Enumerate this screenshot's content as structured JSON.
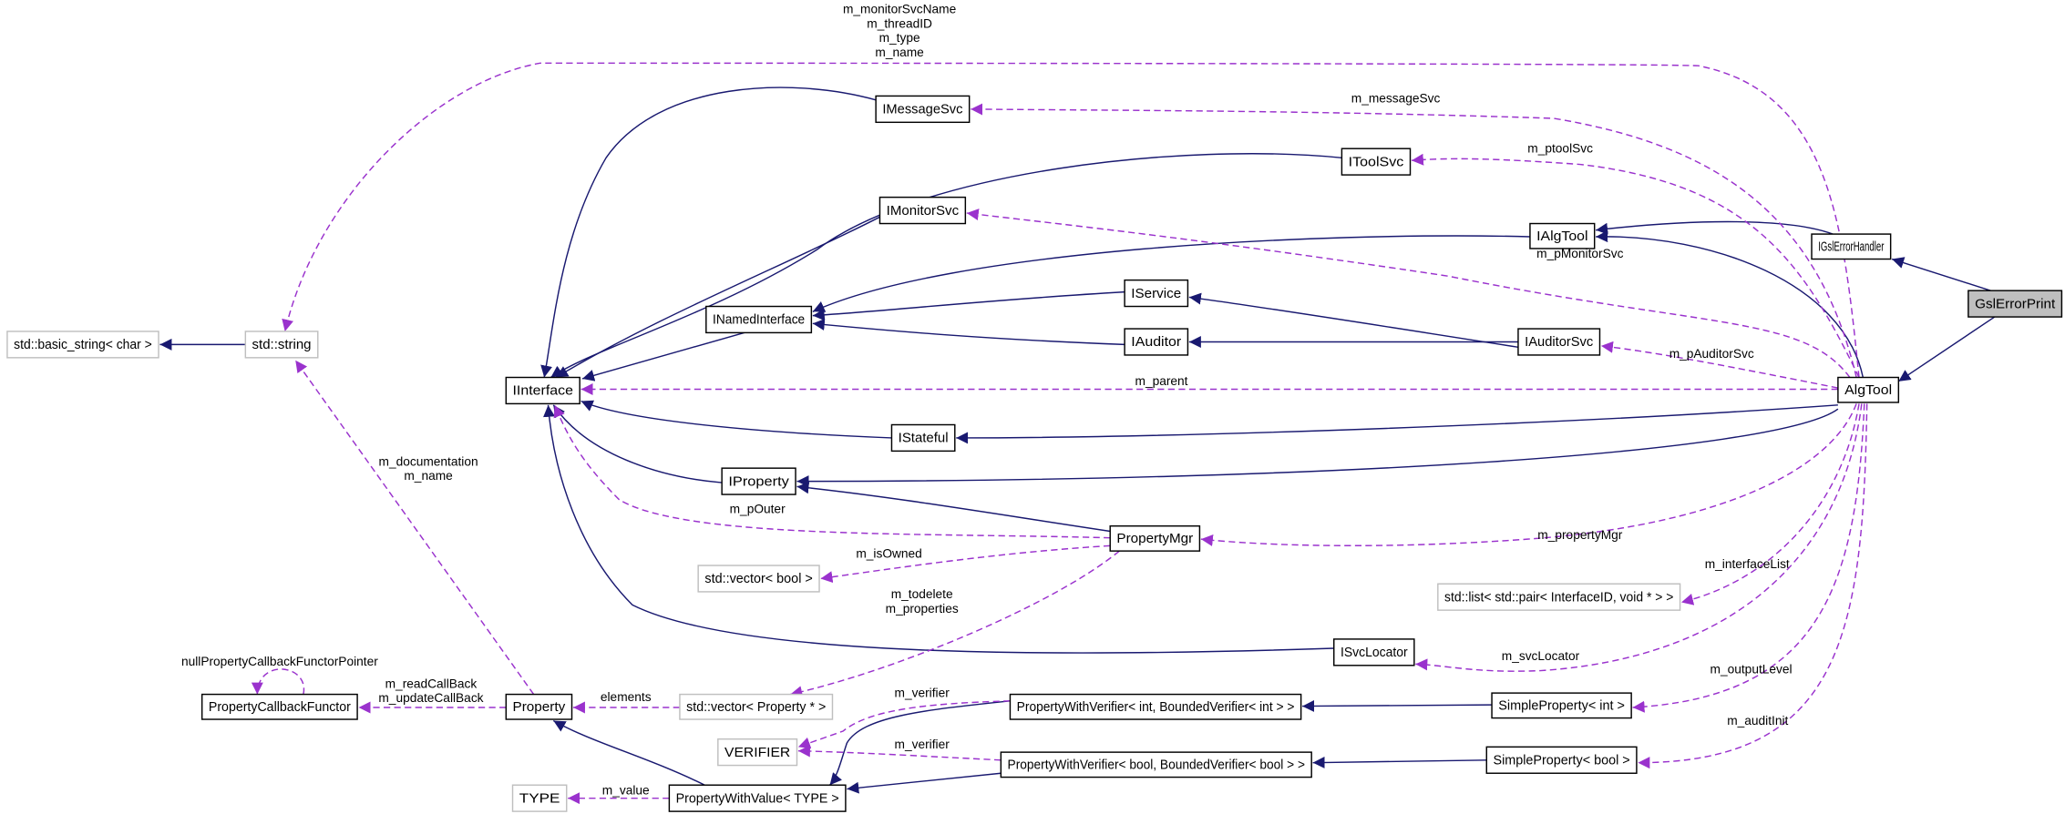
{
  "colors": {
    "inheritance": "#191970",
    "usage": "#9a32cd",
    "focus_fill": "#bfbfbf",
    "external_border": "#bfbfbf"
  },
  "nodes": [
    {
      "label": "GslErrorPrint",
      "kind": "focus"
    },
    {
      "label": "IGslErrorHandler",
      "kind": "class"
    },
    {
      "label": "AlgTool",
      "kind": "class"
    },
    {
      "label": "IAlgTool",
      "kind": "class"
    },
    {
      "label": "IToolSvc",
      "kind": "class"
    },
    {
      "label": "IMessageSvc",
      "kind": "class"
    },
    {
      "label": "IMonitorSvc",
      "kind": "class"
    },
    {
      "label": "IService",
      "kind": "class"
    },
    {
      "label": "IAuditor",
      "kind": "class"
    },
    {
      "label": "IAuditorSvc",
      "kind": "class"
    },
    {
      "label": "INamedInterface",
      "kind": "class"
    },
    {
      "label": "IInterface",
      "kind": "class"
    },
    {
      "label": "std::basic_string< char >",
      "kind": "external"
    },
    {
      "label": "std::string",
      "kind": "external"
    },
    {
      "label": "IStateful",
      "kind": "class"
    },
    {
      "label": "IProperty",
      "kind": "class"
    },
    {
      "label": "PropertyMgr",
      "kind": "class"
    },
    {
      "label": "std::vector< bool >",
      "kind": "external"
    },
    {
      "label": "std::list< std::pair< InterfaceID, void * > >",
      "kind": "external"
    },
    {
      "label": "ISvcLocator",
      "kind": "class"
    },
    {
      "label": "PropertyCallbackFunctor",
      "kind": "class"
    },
    {
      "label": "Property",
      "kind": "class"
    },
    {
      "label": "std::vector< Property * >",
      "kind": "external"
    },
    {
      "label": "PropertyWithVerifier< int, BoundedVerifier< int > >",
      "kind": "class"
    },
    {
      "label": "SimpleProperty< int >",
      "kind": "class"
    },
    {
      "label": "VERIFIER",
      "kind": "external"
    },
    {
      "label": "PropertyWithVerifier< bool, BoundedVerifier< bool > >",
      "kind": "class"
    },
    {
      "label": "SimpleProperty< bool >",
      "kind": "class"
    },
    {
      "label": "TYPE",
      "kind": "external"
    },
    {
      "label": "PropertyWithValue< TYPE >",
      "kind": "class"
    }
  ],
  "edges": [
    {
      "from": "GslErrorPrint",
      "to": "IGslErrorHandler",
      "kind": "inheritance",
      "labels": []
    },
    {
      "from": "GslErrorPrint",
      "to": "AlgTool",
      "kind": "inheritance",
      "labels": []
    },
    {
      "from": "IGslErrorHandler",
      "to": "IAlgTool",
      "kind": "inheritance",
      "labels": []
    },
    {
      "from": "AlgTool",
      "to": "IAlgTool",
      "kind": "inheritance",
      "labels": []
    },
    {
      "from": "AlgTool",
      "to": "IStateful",
      "kind": "inheritance",
      "labels": []
    },
    {
      "from": "AlgTool",
      "to": "IProperty",
      "kind": "inheritance",
      "labels": []
    },
    {
      "from": "IAlgTool",
      "to": "INamedInterface",
      "kind": "inheritance",
      "labels": []
    },
    {
      "from": "IService",
      "to": "INamedInterface",
      "kind": "inheritance",
      "labels": []
    },
    {
      "from": "IAuditor",
      "to": "INamedInterface",
      "kind": "inheritance",
      "labels": []
    },
    {
      "from": "IAuditorSvc",
      "to": "IService",
      "kind": "inheritance",
      "labels": []
    },
    {
      "from": "IAuditorSvc",
      "to": "IAuditor",
      "kind": "inheritance",
      "labels": []
    },
    {
      "from": "INamedInterface",
      "to": "IInterface",
      "kind": "inheritance",
      "labels": []
    },
    {
      "from": "IMessageSvc",
      "to": "IInterface",
      "kind": "inheritance",
      "labels": []
    },
    {
      "from": "IToolSvc",
      "to": "IInterface",
      "kind": "inheritance",
      "labels": []
    },
    {
      "from": "IMonitorSvc",
      "to": "IInterface",
      "kind": "inheritance",
      "labels": []
    },
    {
      "from": "IStateful",
      "to": "IInterface",
      "kind": "inheritance",
      "labels": []
    },
    {
      "from": "IProperty",
      "to": "IInterface",
      "kind": "inheritance",
      "labels": []
    },
    {
      "from": "PropertyMgr",
      "to": "IProperty",
      "kind": "inheritance",
      "labels": []
    },
    {
      "from": "ISvcLocator",
      "to": "IInterface",
      "kind": "inheritance",
      "labels": []
    },
    {
      "from": "PropertyWithValue< TYPE >",
      "to": "Property",
      "kind": "inheritance",
      "labels": []
    },
    {
      "from": "PropertyWithVerifier< int, BoundedVerifier< int > >",
      "to": "PropertyWithValue< TYPE >",
      "kind": "inheritance",
      "labels": []
    },
    {
      "from": "PropertyWithVerifier< bool, BoundedVerifier< bool > >",
      "to": "PropertyWithValue< TYPE >",
      "kind": "inheritance",
      "labels": []
    },
    {
      "from": "SimpleProperty< int >",
      "to": "PropertyWithVerifier< int, BoundedVerifier< int > >",
      "kind": "inheritance",
      "labels": []
    },
    {
      "from": "SimpleProperty< bool >",
      "to": "PropertyWithVerifier< bool, BoundedVerifier< bool > >",
      "kind": "inheritance",
      "labels": []
    },
    {
      "from": "std::string",
      "to": "std::basic_string< char >",
      "kind": "inheritance",
      "labels": []
    },
    {
      "from": "AlgTool",
      "to": "std::string",
      "kind": "usage",
      "labels": [
        "m_monitorSvcName",
        "m_threadID",
        "m_type",
        "m_name"
      ]
    },
    {
      "from": "AlgTool",
      "to": "IMessageSvc",
      "kind": "usage",
      "labels": [
        "m_messageSvc"
      ]
    },
    {
      "from": "AlgTool",
      "to": "IToolSvc",
      "kind": "usage",
      "labels": [
        "m_ptoolSvc"
      ]
    },
    {
      "from": "AlgTool",
      "to": "IMonitorSvc",
      "kind": "usage",
      "labels": [
        "m_pMonitorSvc"
      ]
    },
    {
      "from": "AlgTool",
      "to": "IAuditorSvc",
      "kind": "usage",
      "labels": [
        "m_pAuditorSvc"
      ]
    },
    {
      "from": "AlgTool",
      "to": "IInterface",
      "kind": "usage",
      "labels": [
        "m_parent"
      ]
    },
    {
      "from": "AlgTool",
      "to": "PropertyMgr",
      "kind": "usage",
      "labels": [
        "m_propertyMgr"
      ]
    },
    {
      "from": "AlgTool",
      "to": "std::list< std::pair< InterfaceID, void * > >",
      "kind": "usage",
      "labels": [
        "m_interfaceList"
      ]
    },
    {
      "from": "AlgTool",
      "to": "ISvcLocator",
      "kind": "usage",
      "labels": [
        "m_svcLocator"
      ]
    },
    {
      "from": "AlgTool",
      "to": "SimpleProperty< int >",
      "kind": "usage",
      "labels": [
        "m_outputLevel"
      ]
    },
    {
      "from": "AlgTool",
      "to": "SimpleProperty< bool >",
      "kind": "usage",
      "labels": [
        "m_auditInit"
      ]
    },
    {
      "from": "PropertyMgr",
      "to": "IInterface",
      "kind": "usage",
      "labels": [
        "m_pOuter"
      ]
    },
    {
      "from": "PropertyMgr",
      "to": "std::vector< bool >",
      "kind": "usage",
      "labels": [
        "m_isOwned"
      ]
    },
    {
      "from": "PropertyMgr",
      "to": "std::vector< Property * >",
      "kind": "usage",
      "labels": [
        "m_todelete",
        "m_properties"
      ]
    },
    {
      "from": "Property",
      "to": "std::string",
      "kind": "usage",
      "labels": [
        "m_documentation",
        "m_name"
      ]
    },
    {
      "from": "Property",
      "to": "PropertyCallbackFunctor",
      "kind": "usage",
      "labels": [
        "m_readCallBack",
        "m_updateCallBack"
      ]
    },
    {
      "from": "PropertyCallbackFunctor",
      "to": "PropertyCallbackFunctor",
      "kind": "usage",
      "labels": [
        "nullPropertyCallbackFunctorPointer"
      ]
    },
    {
      "from": "std::vector< Property * >",
      "to": "Property",
      "kind": "usage",
      "labels": [
        "elements"
      ]
    },
    {
      "from": "PropertyWithVerifier< int, BoundedVerifier< int > >",
      "to": "VERIFIER",
      "kind": "usage",
      "labels": [
        "m_verifier"
      ]
    },
    {
      "from": "PropertyWithVerifier< bool, BoundedVerifier< bool > >",
      "to": "VERIFIER",
      "kind": "usage",
      "labels": [
        "m_verifier"
      ]
    },
    {
      "from": "PropertyWithValue< TYPE >",
      "to": "TYPE",
      "kind": "usage",
      "labels": [
        "m_value"
      ]
    }
  ]
}
